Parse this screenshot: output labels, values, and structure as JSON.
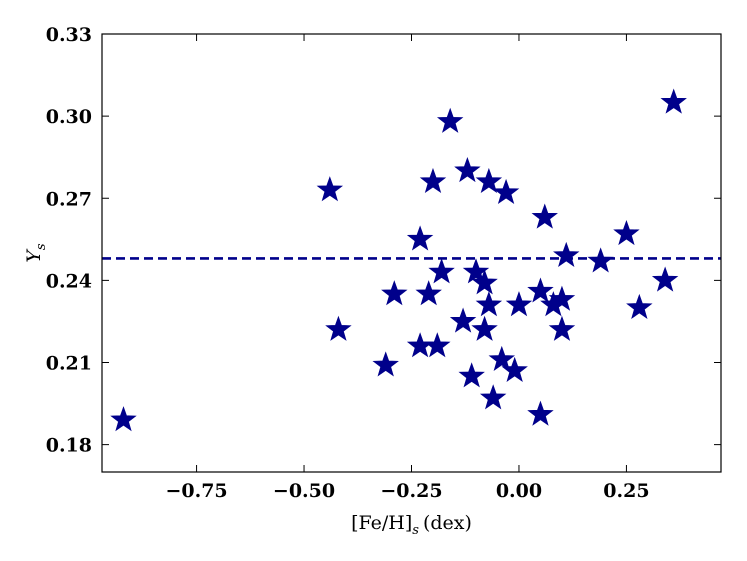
{
  "chart_data": {
    "type": "scatter",
    "xlabel": "[Fe/H]",
    "xlabel_subscript": "s",
    "xlabel_unit": "(dex)",
    "ylabel": "Y",
    "ylabel_subscript": "s",
    "xlim": [
      -0.97,
      0.47
    ],
    "ylim": [
      0.17,
      0.33
    ],
    "xticks": [
      -0.75,
      -0.5,
      -0.25,
      0.0,
      0.25
    ],
    "xtick_labels": [
      "−0.75",
      "−0.50",
      "−0.25",
      "0.00",
      "0.25"
    ],
    "yticks": [
      0.18,
      0.21,
      0.24,
      0.27,
      0.3,
      0.33
    ],
    "ytick_labels": [
      "0.18",
      "0.21",
      "0.24",
      "0.27",
      "0.30",
      "0.33"
    ],
    "grid": false,
    "marker": "star",
    "marker_color": "#00008b",
    "reference_line": {
      "style": "dashed",
      "y": 0.248,
      "color": "#00008b"
    },
    "series": [
      {
        "points": [
          {
            "x": -0.92,
            "y": 0.189
          },
          {
            "x": -0.44,
            "y": 0.273
          },
          {
            "x": -0.42,
            "y": 0.222
          },
          {
            "x": -0.31,
            "y": 0.209
          },
          {
            "x": -0.29,
            "y": 0.235
          },
          {
            "x": -0.23,
            "y": 0.255
          },
          {
            "x": -0.23,
            "y": 0.216
          },
          {
            "x": -0.21,
            "y": 0.235
          },
          {
            "x": -0.2,
            "y": 0.276
          },
          {
            "x": -0.19,
            "y": 0.216
          },
          {
            "x": -0.18,
            "y": 0.243
          },
          {
            "x": -0.16,
            "y": 0.298
          },
          {
            "x": -0.13,
            "y": 0.225
          },
          {
            "x": -0.12,
            "y": 0.28
          },
          {
            "x": -0.11,
            "y": 0.205
          },
          {
            "x": -0.1,
            "y": 0.243
          },
          {
            "x": -0.08,
            "y": 0.239
          },
          {
            "x": -0.08,
            "y": 0.222
          },
          {
            "x": -0.07,
            "y": 0.276
          },
          {
            "x": -0.07,
            "y": 0.231
          },
          {
            "x": -0.06,
            "y": 0.197
          },
          {
            "x": -0.04,
            "y": 0.211
          },
          {
            "x": -0.03,
            "y": 0.272
          },
          {
            "x": -0.01,
            "y": 0.207
          },
          {
            "x": 0.0,
            "y": 0.231
          },
          {
            "x": 0.05,
            "y": 0.236
          },
          {
            "x": 0.05,
            "y": 0.191
          },
          {
            "x": 0.06,
            "y": 0.263
          },
          {
            "x": 0.08,
            "y": 0.231
          },
          {
            "x": 0.1,
            "y": 0.233
          },
          {
            "x": 0.1,
            "y": 0.222
          },
          {
            "x": 0.11,
            "y": 0.249
          },
          {
            "x": 0.19,
            "y": 0.247
          },
          {
            "x": 0.25,
            "y": 0.257
          },
          {
            "x": 0.28,
            "y": 0.23
          },
          {
            "x": 0.34,
            "y": 0.24
          },
          {
            "x": 0.36,
            "y": 0.305
          }
        ]
      }
    ]
  }
}
